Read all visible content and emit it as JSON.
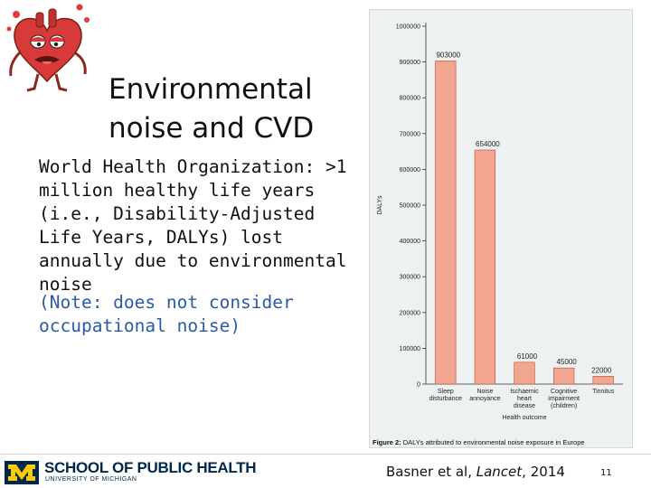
{
  "slide": {
    "title_line1": "Environmental",
    "title_line2": "noise and CVD",
    "body": "World Health Organization: >1 million healthy life years (i.e., Disability-Adjusted Life Years, DALYs) lost annually due to environmental noise",
    "note": "(Note: does not consider occupational noise)",
    "mascot_icon": "sad-heart-mascot-icon"
  },
  "figure": {
    "caption_prefix": "Figure 2:",
    "caption_text": " DALYs attributed to environmental noise exposure in Europe"
  },
  "chart_data": {
    "type": "bar",
    "categories": [
      [
        "Sleep",
        "disturbance"
      ],
      [
        "Noise",
        "annoyance"
      ],
      [
        "Ischaemic",
        "heart",
        "disease"
      ],
      [
        "Cognitive",
        "impairment",
        "(children)"
      ],
      [
        "Tinnitus"
      ]
    ],
    "values": [
      903000,
      654000,
      61000,
      45000,
      22000
    ],
    "data_labels": [
      "903000",
      "654000",
      "61000",
      "45000",
      "22000"
    ],
    "ylim": [
      0,
      1000000
    ],
    "yticks": [
      0,
      100000,
      200000,
      300000,
      400000,
      500000,
      600000,
      700000,
      800000,
      900000,
      1000000
    ],
    "ytick_labels": [
      "0",
      "100000",
      "200000",
      "300000",
      "400000",
      "500000",
      "600000",
      "700000",
      "800000",
      "900000",
      "1000000"
    ],
    "xlabel": "Health outcome",
    "ylabel": "DALYs",
    "bar_color": "#f2a58f",
    "bar_edge_color": "#b5503c"
  },
  "footer": {
    "school_name": "SCHOOL OF PUBLIC HEALTH",
    "school_sub": "UNIVERSITY OF MICHIGAN",
    "logo_letter": "M",
    "citation_author": "Basner et al, ",
    "citation_journal": "Lancet",
    "citation_year": ", 2014",
    "page_number": "11",
    "brand_blue": "#00274c",
    "brand_maize": "#ffcb05"
  }
}
